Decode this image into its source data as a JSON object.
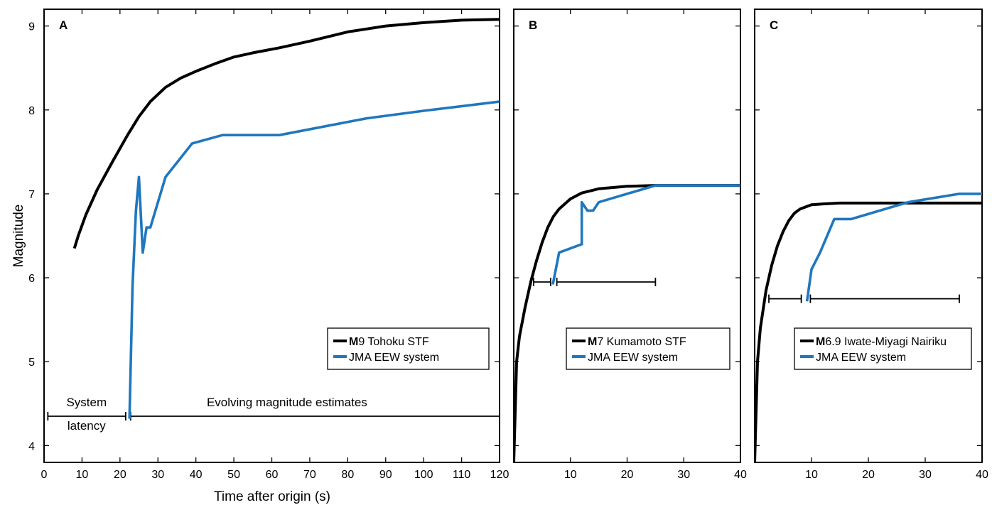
{
  "figure": {
    "xlabel": "Time after origin (s)",
    "ylabel": "Magnitude",
    "colors": {
      "stf": "#000000",
      "jma": "#1f77be"
    }
  },
  "chart_data": [
    {
      "panel_label": "A",
      "type": "line",
      "xlim": [
        0,
        120
      ],
      "ylim": [
        3.8,
        9.2
      ],
      "xticks": [
        0,
        10,
        20,
        30,
        40,
        50,
        60,
        70,
        80,
        90,
        100,
        110,
        120
      ],
      "yticks": [
        4,
        5,
        6,
        7,
        8,
        9
      ],
      "xtick_labels": [
        "0",
        "10",
        "20",
        "30",
        "40",
        "50",
        "60",
        "70",
        "80",
        "90",
        "100",
        "110",
        "120"
      ],
      "ytick_labels": [
        "4",
        "5",
        "6",
        "7",
        "8",
        "9"
      ],
      "legend_position": "bottom-right",
      "series": [
        {
          "name_bold": "M",
          "name_rest": "9 Tohoku STF",
          "color": "#000000",
          "x": [
            8,
            9,
            11,
            14,
            18,
            22,
            25,
            28,
            32,
            36,
            40,
            45,
            50,
            55,
            62,
            70,
            80,
            90,
            100,
            110,
            120
          ],
          "y": [
            6.35,
            6.5,
            6.75,
            7.05,
            7.38,
            7.7,
            7.92,
            8.1,
            8.27,
            8.38,
            8.46,
            8.55,
            8.63,
            8.68,
            8.74,
            8.82,
            8.93,
            9.0,
            9.04,
            9.07,
            9.08
          ]
        },
        {
          "name_bold": "",
          "name_rest": "JMA EEW system",
          "color": "#1f77be",
          "x": [
            22.5,
            23.3,
            24.2,
            25,
            26,
            27,
            28,
            32,
            39,
            47,
            62,
            85,
            100,
            120
          ],
          "y": [
            4.32,
            5.9,
            6.8,
            7.2,
            6.3,
            6.6,
            6.6,
            7.2,
            7.6,
            7.7,
            7.7,
            7.9,
            7.99,
            8.1
          ]
        }
      ],
      "intervals": [
        {
          "x0": 1,
          "x1": 21.5,
          "y": 4.35
        },
        {
          "x0": 22.8,
          "x1": 120,
          "y": 4.35
        }
      ],
      "annotations": [
        {
          "text": "System",
          "x": 11.2,
          "y": 4.47
        },
        {
          "text": "latency",
          "x": 11.2,
          "y": 4.19
        },
        {
          "text": "Evolving magnitude estimates",
          "x": 64,
          "y": 4.47
        }
      ]
    },
    {
      "panel_label": "B",
      "type": "line",
      "xlim": [
        0,
        40
      ],
      "ylim": [
        3.8,
        9.2
      ],
      "xticks": [
        10,
        20,
        30,
        40
      ],
      "yticks": [
        4,
        5,
        6,
        7,
        8,
        9
      ],
      "xtick_labels": [
        "10",
        "20",
        "30",
        "40"
      ],
      "ytick_labels": [],
      "legend_position": "bottom-right",
      "series": [
        {
          "name_bold": "M",
          "name_rest": "7 Kumamoto STF",
          "color": "#000000",
          "x": [
            0,
            0.5,
            1,
            2,
            3,
            4,
            5,
            6,
            7,
            8,
            10,
            12,
            15,
            20,
            25,
            40
          ],
          "y": [
            3.8,
            5.0,
            5.3,
            5.65,
            5.95,
            6.2,
            6.42,
            6.6,
            6.73,
            6.82,
            6.94,
            7.01,
            7.06,
            7.09,
            7.1,
            7.1
          ]
        },
        {
          "name_bold": "",
          "name_rest": "JMA EEW system",
          "color": "#1f77be",
          "x": [
            6.9,
            8,
            12,
            12,
            13,
            14,
            15,
            25,
            40
          ],
          "y": [
            5.92,
            6.3,
            6.4,
            6.9,
            6.8,
            6.8,
            6.9,
            7.1,
            7.1
          ]
        }
      ],
      "intervals": [
        {
          "x0": 3.5,
          "x1": 6.5,
          "y": 5.95
        },
        {
          "x0": 7.6,
          "x1": 25,
          "y": 5.95
        }
      ],
      "annotations": []
    },
    {
      "panel_label": "C",
      "type": "line",
      "xlim": [
        0,
        40
      ],
      "ylim": [
        3.8,
        9.2
      ],
      "xticks": [
        10,
        20,
        30,
        40
      ],
      "yticks": [
        4,
        5,
        6,
        7,
        8,
        9
      ],
      "xtick_labels": [
        "10",
        "20",
        "30",
        "40"
      ],
      "ytick_labels": [],
      "legend_position": "bottom-right",
      "series": [
        {
          "name_bold": "M",
          "name_rest": "6.9 Iwate-Miyagi Nairiku",
          "color": "#000000",
          "x": [
            0,
            0.5,
            1,
            2,
            3,
            4,
            5,
            6,
            7,
            8,
            10,
            12,
            15,
            20,
            25,
            40
          ],
          "y": [
            3.8,
            5.0,
            5.4,
            5.85,
            6.15,
            6.38,
            6.55,
            6.68,
            6.77,
            6.82,
            6.87,
            6.88,
            6.89,
            6.89,
            6.89,
            6.89
          ]
        },
        {
          "name_bold": "",
          "name_rest": "JMA EEW system",
          "color": "#1f77be",
          "x": [
            9.2,
            10,
            11.5,
            14,
            17,
            27,
            36,
            40
          ],
          "y": [
            5.72,
            6.1,
            6.3,
            6.7,
            6.7,
            6.9,
            7.0,
            7.0
          ]
        }
      ],
      "intervals": [
        {
          "x0": 2.5,
          "x1": 8.2,
          "y": 5.75
        },
        {
          "x0": 9.8,
          "x1": 36,
          "y": 5.75
        }
      ],
      "annotations": []
    }
  ]
}
